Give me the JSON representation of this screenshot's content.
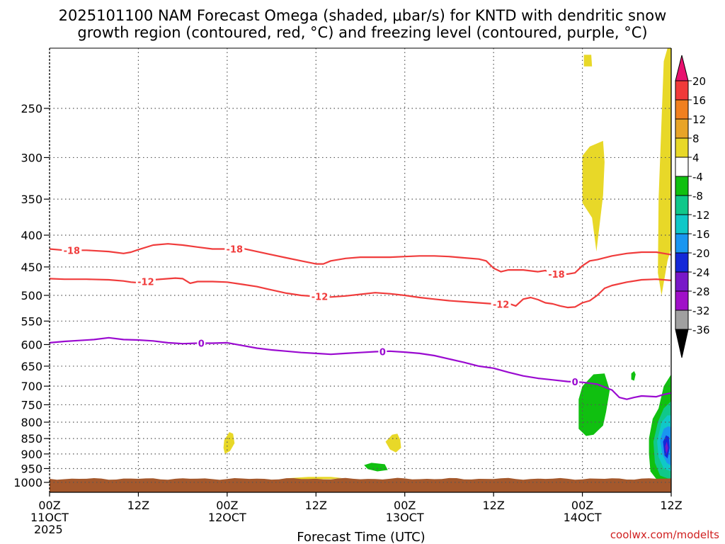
{
  "title_line1": "2025101100 NAM Forecast Omega (shaded, μbar/s) for KNTD with dendritic snow",
  "title_line2": "growth region (contoured, red, °C) and freezing level (contoured, purple, °C)",
  "credit": "coolwx.com/modelts",
  "chart_data": {
    "type": "heatmap",
    "title": "2025101100 NAM Forecast Omega (shaded, μbar/s) for KNTD with dendritic snow growth region (contoured, red, °C) and freezing level (contoured, purple, °C)",
    "xlabel": "Forecast Time (UTC)",
    "ylabel": "",
    "x_range_hours": [
      0,
      84
    ],
    "y_range_hPa": [
      1000,
      200
    ],
    "y_scale": "log-pressure",
    "grid": true,
    "y_ticks": [
      250,
      300,
      350,
      400,
      450,
      500,
      550,
      600,
      650,
      700,
      750,
      800,
      850,
      900,
      950,
      1000
    ],
    "x_ticks": [
      {
        "hour": 0,
        "lines": [
          "00Z",
          "11OCT",
          "2025"
        ]
      },
      {
        "hour": 12,
        "lines": [
          "12Z"
        ]
      },
      {
        "hour": 24,
        "lines": [
          "00Z",
          "12OCT"
        ]
      },
      {
        "hour": 36,
        "lines": [
          "12Z"
        ]
      },
      {
        "hour": 48,
        "lines": [
          "00Z",
          "13OCT"
        ]
      },
      {
        "hour": 60,
        "lines": [
          "12Z"
        ]
      },
      {
        "hour": 72,
        "lines": [
          "00Z",
          "14OCT"
        ]
      },
      {
        "hour": 84,
        "lines": [
          "12Z"
        ]
      }
    ],
    "colorbar": {
      "units": "μbar/s",
      "labels": [
        "20",
        "16",
        "12",
        "8",
        "4",
        "-4",
        "-8",
        "-12",
        "-16",
        "-20",
        "-24",
        "-28",
        "-32",
        "-36"
      ],
      "colors": [
        "#e8106e",
        "#f03a3a",
        "#f08020",
        "#e8a428",
        "#e8d828",
        "#ffffff",
        "#10c010",
        "#10c88a",
        "#10c8c8",
        "#1a96f0",
        "#1428d8",
        "#7818c8",
        "#a010c8",
        "#a0a0a0",
        "#000000"
      ]
    },
    "contours": {
      "dendritic_minus18": {
        "color": "#f03c3c",
        "label": "-18",
        "points": [
          [
            0,
            421
          ],
          [
            2,
            423
          ],
          [
            5,
            423
          ],
          [
            8,
            425
          ],
          [
            10,
            428
          ],
          [
            11,
            426
          ],
          [
            12,
            422
          ],
          [
            14,
            415
          ],
          [
            16,
            413
          ],
          [
            18,
            415
          ],
          [
            20,
            418
          ],
          [
            22,
            421
          ],
          [
            24,
            421
          ],
          [
            26,
            420
          ],
          [
            28,
            425
          ],
          [
            30,
            430
          ],
          [
            32,
            435
          ],
          [
            34,
            440
          ],
          [
            36,
            445
          ],
          [
            37,
            445
          ],
          [
            38,
            440
          ],
          [
            40,
            436
          ],
          [
            42,
            434
          ],
          [
            44,
            434
          ],
          [
            46,
            434
          ],
          [
            48,
            433
          ],
          [
            50,
            432
          ],
          [
            52,
            432
          ],
          [
            54,
            433
          ],
          [
            56,
            435
          ],
          [
            58,
            437
          ],
          [
            59,
            440
          ],
          [
            60,
            452
          ],
          [
            61,
            458
          ],
          [
            62,
            455
          ],
          [
            64,
            455
          ],
          [
            66,
            458
          ],
          [
            67,
            456
          ],
          [
            68,
            462
          ],
          [
            69,
            463
          ],
          [
            70,
            462
          ],
          [
            71,
            460
          ],
          [
            72,
            448
          ],
          [
            73,
            440
          ],
          [
            74,
            438
          ],
          [
            76,
            432
          ],
          [
            78,
            428
          ],
          [
            80,
            426
          ],
          [
            82,
            426
          ],
          [
            84,
            430
          ]
        ]
      },
      "dendritic_minus12": {
        "color": "#f03c3c",
        "label": "-12",
        "points": [
          [
            0,
            470
          ],
          [
            2,
            471
          ],
          [
            5,
            471
          ],
          [
            8,
            472
          ],
          [
            10,
            474
          ],
          [
            11,
            476
          ],
          [
            12,
            477
          ],
          [
            14,
            472
          ],
          [
            17,
            469
          ],
          [
            18,
            470
          ],
          [
            19,
            478
          ],
          [
            20,
            475
          ],
          [
            22,
            475
          ],
          [
            24,
            476
          ],
          [
            26,
            480
          ],
          [
            28,
            484
          ],
          [
            30,
            490
          ],
          [
            32,
            496
          ],
          [
            34,
            500
          ],
          [
            36,
            502
          ],
          [
            38,
            503
          ],
          [
            40,
            501
          ],
          [
            42,
            498
          ],
          [
            44,
            495
          ],
          [
            46,
            497
          ],
          [
            48,
            500
          ],
          [
            50,
            504
          ],
          [
            52,
            507
          ],
          [
            54,
            510
          ],
          [
            56,
            512
          ],
          [
            58,
            514
          ],
          [
            60,
            516
          ],
          [
            62,
            515
          ],
          [
            63,
            520
          ],
          [
            64,
            507
          ],
          [
            65,
            504
          ],
          [
            66,
            508
          ],
          [
            67,
            514
          ],
          [
            68,
            516
          ],
          [
            69,
            520
          ],
          [
            70,
            523
          ],
          [
            71,
            522
          ],
          [
            72,
            514
          ],
          [
            73,
            510
          ],
          [
            74,
            500
          ],
          [
            75,
            487
          ],
          [
            76,
            482
          ],
          [
            78,
            476
          ],
          [
            80,
            472
          ],
          [
            82,
            471
          ],
          [
            84,
            473
          ]
        ]
      },
      "freezing_level": {
        "color": "#9a0ad0",
        "label": "0",
        "points": [
          [
            0,
            596
          ],
          [
            2,
            593
          ],
          [
            4,
            591
          ],
          [
            6,
            589
          ],
          [
            8,
            585
          ],
          [
            10,
            589
          ],
          [
            12,
            590
          ],
          [
            14,
            592
          ],
          [
            16,
            596
          ],
          [
            18,
            598
          ],
          [
            20,
            597
          ],
          [
            22,
            597
          ],
          [
            24,
            596
          ],
          [
            26,
            602
          ],
          [
            28,
            608
          ],
          [
            30,
            612
          ],
          [
            32,
            615
          ],
          [
            34,
            618
          ],
          [
            36,
            620
          ],
          [
            38,
            622
          ],
          [
            40,
            620
          ],
          [
            42,
            618
          ],
          [
            44,
            616
          ],
          [
            46,
            615
          ],
          [
            48,
            617
          ],
          [
            50,
            620
          ],
          [
            52,
            625
          ],
          [
            54,
            633
          ],
          [
            56,
            641
          ],
          [
            58,
            650
          ],
          [
            60,
            655
          ],
          [
            62,
            665
          ],
          [
            64,
            674
          ],
          [
            66,
            680
          ],
          [
            68,
            684
          ],
          [
            70,
            688
          ],
          [
            72,
            690
          ],
          [
            74,
            695
          ],
          [
            76,
            710
          ],
          [
            77,
            730
          ],
          [
            78,
            735
          ],
          [
            79,
            730
          ],
          [
            80,
            726
          ],
          [
            82,
            728
          ],
          [
            83,
            722
          ],
          [
            84,
            718
          ]
        ]
      }
    },
    "contour_labels": [
      {
        "text": "-18",
        "hour": 3,
        "hPa": 423,
        "color": "#f03c3c"
      },
      {
        "text": "-18",
        "hour": 25,
        "hPa": 421,
        "color": "#f03c3c"
      },
      {
        "text": "-18",
        "hour": 68.5,
        "hPa": 462,
        "color": "#f03c3c"
      },
      {
        "text": "-12",
        "hour": 13,
        "hPa": 475,
        "color": "#f03c3c"
      },
      {
        "text": "-12",
        "hour": 36.5,
        "hPa": 502,
        "color": "#f03c3c"
      },
      {
        "text": "-12",
        "hour": 61,
        "hPa": 517,
        "color": "#f03c3c"
      },
      {
        "text": "0",
        "hour": 20.5,
        "hPa": 597,
        "color": "#9a0ad0"
      },
      {
        "text": "0",
        "hour": 45,
        "hPa": 616,
        "color": "#9a0ad0"
      },
      {
        "text": "0",
        "hour": 71,
        "hPa": 689,
        "color": "#9a0ad0"
      }
    ],
    "omega_regions": [
      {
        "range": "4 to 8",
        "color": "#e8d828",
        "points": [
          [
            72.2,
            205
          ],
          [
            73.2,
            205
          ],
          [
            73.3,
            214
          ],
          [
            72.2,
            214
          ]
        ]
      },
      {
        "range": "4 to 8",
        "color": "#e8d828",
        "points": [
          [
            72,
            298
          ],
          [
            73,
            288
          ],
          [
            74.8,
            282
          ],
          [
            75,
            305
          ],
          [
            74.8,
            345
          ],
          [
            73.9,
            425
          ],
          [
            73.3,
            375
          ],
          [
            72,
            355
          ],
          [
            72,
            330
          ]
        ]
      },
      {
        "range": "4 to 8",
        "color": "#e8d828",
        "points": [
          [
            82.3,
            350
          ],
          [
            83,
            210
          ],
          [
            83.5,
            200
          ],
          [
            84,
            200
          ],
          [
            84,
            420
          ],
          [
            83.5,
            440
          ],
          [
            82.7,
            500
          ],
          [
            82.2,
            460
          ]
        ]
      },
      {
        "range": "4 to 8",
        "color": "#e8d828",
        "points": [
          [
            23.6,
            855
          ],
          [
            24.3,
            830
          ],
          [
            24.8,
            835
          ],
          [
            25,
            865
          ],
          [
            24.4,
            890
          ],
          [
            23.7,
            900
          ],
          [
            23.5,
            880
          ]
        ]
      },
      {
        "range": "4 to 8",
        "color": "#e8d828",
        "points": [
          [
            45.4,
            860
          ],
          [
            46.3,
            838
          ],
          [
            47,
            835
          ],
          [
            47.4,
            855
          ],
          [
            47.5,
            880
          ],
          [
            46.8,
            895
          ],
          [
            46,
            885
          ]
        ]
      },
      {
        "range": "4 to 8",
        "color": "#e8d828",
        "points": [
          [
            32,
            985
          ],
          [
            35,
            980
          ],
          [
            38,
            980
          ],
          [
            39.5,
            984
          ],
          [
            38,
            988
          ],
          [
            34,
            988
          ]
        ]
      },
      {
        "range": "-4 to -8",
        "color": "#10c010",
        "points": [
          [
            71.5,
            735
          ],
          [
            72,
            700
          ],
          [
            73.5,
            670
          ],
          [
            75,
            668
          ],
          [
            75.7,
            710
          ],
          [
            75.2,
            770
          ],
          [
            74.8,
            810
          ],
          [
            73.5,
            838
          ],
          [
            72.5,
            842
          ],
          [
            71.5,
            820
          ]
        ]
      },
      {
        "range": "-4 to -8",
        "color": "#10c010",
        "points": [
          [
            78.6,
            668
          ],
          [
            79,
            662
          ],
          [
            79.2,
            670
          ],
          [
            79,
            686
          ],
          [
            78.6,
            683
          ]
        ]
      },
      {
        "range": "-4 to -8",
        "color": "#10c010",
        "points": [
          [
            42.5,
            938
          ],
          [
            43.5,
            930
          ],
          [
            45.3,
            935
          ],
          [
            45.7,
            955
          ],
          [
            44.3,
            960
          ],
          [
            43,
            952
          ]
        ]
      },
      {
        "range": "-4 to -8",
        "color": "#10c010",
        "points": [
          [
            81,
            850
          ],
          [
            81.5,
            790
          ],
          [
            82.3,
            760
          ],
          [
            83,
            700
          ],
          [
            84,
            670
          ],
          [
            84,
            1000
          ],
          [
            82.2,
            995
          ],
          [
            81.2,
            960
          ],
          [
            81,
            900
          ]
        ]
      },
      {
        "range": "-8 to -12",
        "color": "#10c88a",
        "points": [
          [
            81.6,
            860
          ],
          [
            82.2,
            800
          ],
          [
            83,
            760
          ],
          [
            84,
            740
          ],
          [
            84,
            990
          ],
          [
            82.5,
            975
          ],
          [
            81.8,
            930
          ]
        ]
      },
      {
        "range": "-12 to -16",
        "color": "#10c8c8",
        "points": [
          [
            82.1,
            860
          ],
          [
            82.7,
            800
          ],
          [
            83.5,
            780
          ],
          [
            84,
            780
          ],
          [
            84,
            960
          ],
          [
            83,
            950
          ],
          [
            82.3,
            910
          ]
        ]
      },
      {
        "range": "-16 to -20",
        "color": "#1a96f0",
        "points": [
          [
            82.5,
            855
          ],
          [
            83,
            820
          ],
          [
            83.6,
            812
          ],
          [
            84,
            815
          ],
          [
            84,
            940
          ],
          [
            83.4,
            930
          ],
          [
            82.8,
            900
          ]
        ]
      },
      {
        "range": "-20 to -24",
        "color": "#1428d8",
        "points": [
          [
            82.9,
            860
          ],
          [
            83.3,
            840
          ],
          [
            83.7,
            845
          ],
          [
            83.8,
            880
          ],
          [
            83.5,
            915
          ],
          [
            83.1,
            905
          ]
        ]
      },
      {
        "range": "-24 to -28",
        "color": "#7818c8",
        "points": [
          [
            83.2,
            875
          ],
          [
            83.4,
            860
          ],
          [
            83.6,
            880
          ],
          [
            83.4,
            900
          ],
          [
            83.25,
            890
          ]
        ]
      }
    ]
  }
}
